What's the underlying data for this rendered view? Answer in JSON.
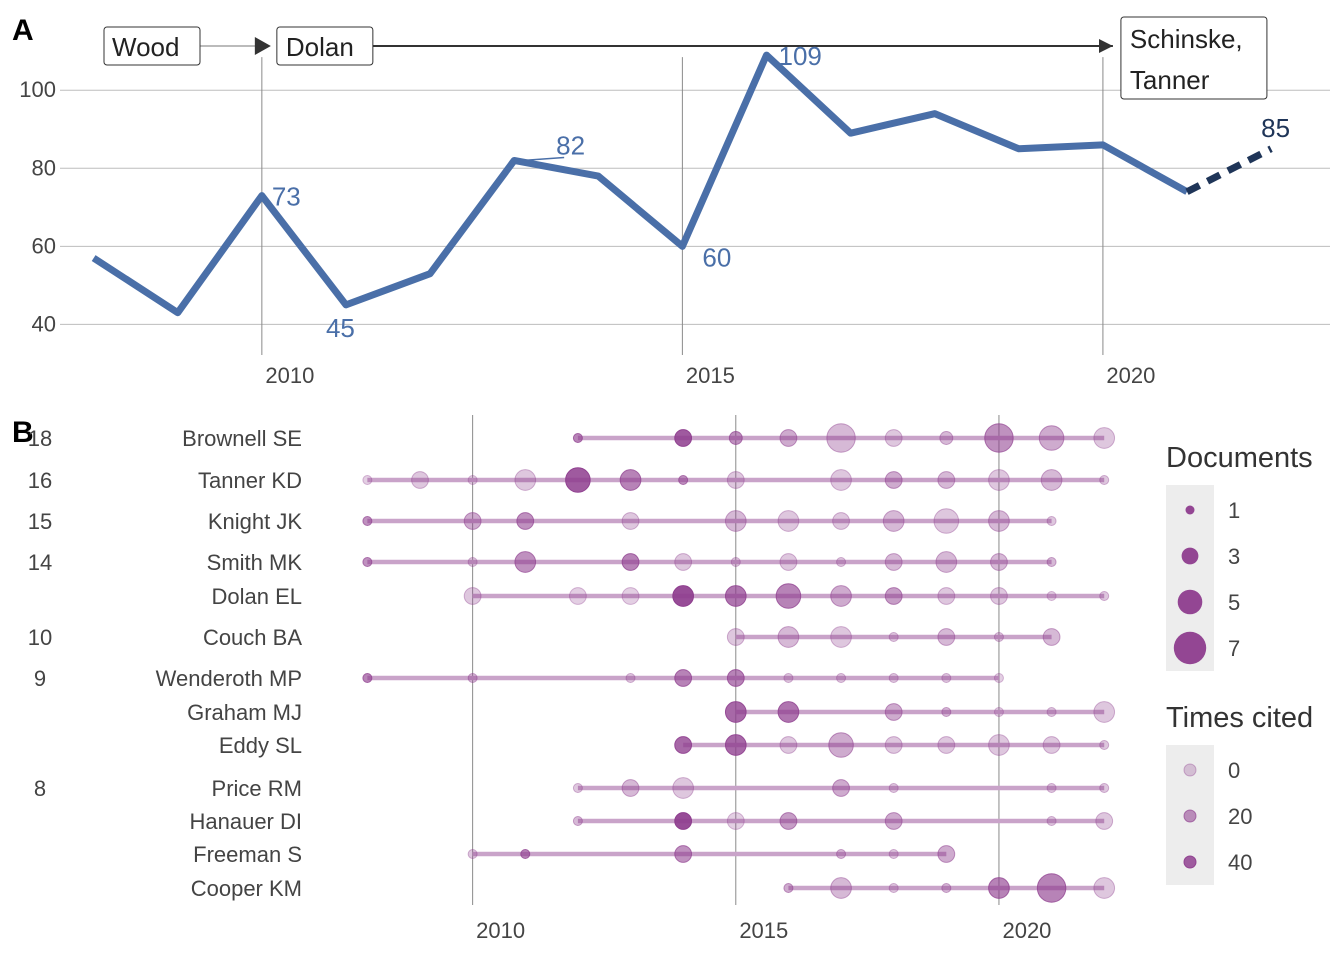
{
  "colors": {
    "line": "#4a6fa8",
    "forecast": "#1f3558",
    "label": "#4a6fa8",
    "forecast_label": "#1f3558",
    "grid": "#bdbdbd",
    "vline": "#8a8a8a",
    "dot": "#8e3d8e",
    "seg": "#c9a3c9",
    "legend_bg": "#ededed",
    "text": "#444444",
    "arrow_gray": "#bbbbbb",
    "arrow_dark": "#333333"
  },
  "chart_data": [
    {
      "type": "line",
      "panel_label": "A",
      "x": [
        2008,
        2009,
        2010,
        2011,
        2012,
        2013,
        2014,
        2015,
        2016,
        2017,
        2018,
        2019,
        2020,
        2021
      ],
      "y": [
        57,
        43,
        73,
        45,
        53,
        82,
        78,
        60,
        109,
        89,
        94,
        85,
        86,
        74
      ],
      "forecast": {
        "x": [
          2021,
          2022
        ],
        "y": [
          74,
          85
        ]
      },
      "data_labels": [
        {
          "x": 2010,
          "y": 73,
          "text": "73"
        },
        {
          "x": 2011,
          "y": 45,
          "text": "45"
        },
        {
          "x": 2013,
          "y": 82,
          "text": "82"
        },
        {
          "x": 2015,
          "y": 60,
          "text": "60"
        },
        {
          "x": 2016,
          "y": 109,
          "text": "109"
        },
        {
          "x": 2022,
          "y": 85,
          "text": "85"
        }
      ],
      "y_ticks": [
        40,
        60,
        80,
        100
      ],
      "x_ticks": [
        2010,
        2015,
        2020
      ],
      "x_tick_labels": [
        "2010",
        "2015",
        "2020"
      ],
      "xlim": [
        2007.6,
        2022.7
      ],
      "ylim": [
        36,
        118
      ],
      "timeline": [
        {
          "text": "Wood",
          "x": 2007.6
        },
        {
          "text": "Dolan",
          "x": 2010
        },
        {
          "text": "Schinske,",
          "text2": "Tanner",
          "x": 2020
        }
      ],
      "grid": "horizontal"
    },
    {
      "type": "scatter",
      "panel_label": "B",
      "xlim": [
        2007.1,
        2022.3
      ],
      "x_ticks": [
        2010,
        2015,
        2020
      ],
      "x_tick_labels": [
        "2010",
        "2015",
        "2020"
      ],
      "authors": [
        {
          "name": "Brownell SE",
          "count": "18",
          "points": [
            [
              2012,
              1,
              30
            ],
            [
              2014,
              3,
              45
            ],
            [
              2015,
              2,
              25
            ],
            [
              2016,
              3,
              15
            ],
            [
              2017,
              6,
              10
            ],
            [
              2018,
              3,
              5
            ],
            [
              2019,
              2,
              10
            ],
            [
              2020,
              6,
              25
            ],
            [
              2021,
              5,
              15
            ],
            [
              2022,
              4,
              5
            ]
          ]
        },
        {
          "name": "Tanner KD",
          "count": "16",
          "points": [
            [
              2008,
              1,
              2
            ],
            [
              2009,
              3,
              5
            ],
            [
              2010,
              1,
              2
            ],
            [
              2011,
              4,
              5
            ],
            [
              2012,
              5,
              45
            ],
            [
              2013,
              4,
              30
            ],
            [
              2014,
              1,
              25
            ],
            [
              2015,
              3,
              5
            ],
            [
              2017,
              4,
              5
            ],
            [
              2018,
              3,
              15
            ],
            [
              2019,
              3,
              10
            ],
            [
              2020,
              4,
              5
            ],
            [
              2021,
              4,
              10
            ],
            [
              2022,
              1,
              5
            ]
          ]
        },
        {
          "name": "Knight JK",
          "count": "15",
          "points": [
            [
              2008,
              1,
              25
            ],
            [
              2010,
              3,
              15
            ],
            [
              2011,
              3,
              25
            ],
            [
              2013,
              3,
              5
            ],
            [
              2015,
              4,
              10
            ],
            [
              2016,
              4,
              5
            ],
            [
              2017,
              3,
              5
            ],
            [
              2018,
              4,
              10
            ],
            [
              2019,
              5,
              5
            ],
            [
              2020,
              4,
              10
            ],
            [
              2021,
              1,
              5
            ]
          ]
        },
        {
          "name": "Smith MK",
          "count": "14",
          "points": [
            [
              2008,
              1,
              25
            ],
            [
              2010,
              1,
              5
            ],
            [
              2011,
              4,
              25
            ],
            [
              2013,
              3,
              30
            ],
            [
              2014,
              3,
              5
            ],
            [
              2015,
              1,
              5
            ],
            [
              2016,
              3,
              5
            ],
            [
              2017,
              1,
              5
            ],
            [
              2018,
              3,
              10
            ],
            [
              2019,
              4,
              10
            ],
            [
              2020,
              3,
              10
            ],
            [
              2021,
              1,
              10
            ]
          ]
        },
        {
          "name": "Dolan EL",
          "count": "",
          "points": [
            [
              2010,
              3,
              5
            ],
            [
              2012,
              3,
              2
            ],
            [
              2013,
              3,
              2
            ],
            [
              2014,
              4,
              50
            ],
            [
              2015,
              4,
              35
            ],
            [
              2016,
              5,
              30
            ],
            [
              2017,
              4,
              15
            ],
            [
              2018,
              3,
              20
            ],
            [
              2019,
              3,
              5
            ],
            [
              2020,
              3,
              5
            ],
            [
              2021,
              1,
              2
            ],
            [
              2022,
              1,
              5
            ]
          ]
        },
        {
          "name": "Couch BA",
          "count": "10",
          "points": [
            [
              2015,
              3,
              5
            ],
            [
              2016,
              4,
              10
            ],
            [
              2017,
              4,
              5
            ],
            [
              2018,
              1,
              5
            ],
            [
              2019,
              3,
              10
            ],
            [
              2020,
              1,
              5
            ],
            [
              2021,
              3,
              10
            ]
          ]
        },
        {
          "name": "Wenderoth MP",
          "count": "9",
          "points": [
            [
              2008,
              1,
              30
            ],
            [
              2010,
              1,
              10
            ],
            [
              2013,
              1,
              5
            ],
            [
              2014,
              3,
              30
            ],
            [
              2015,
              3,
              30
            ],
            [
              2016,
              1,
              5
            ],
            [
              2017,
              1,
              5
            ],
            [
              2018,
              1,
              5
            ],
            [
              2019,
              1,
              5
            ],
            [
              2020,
              1,
              2
            ]
          ]
        },
        {
          "name": "Graham MJ",
          "count": "",
          "points": [
            [
              2015,
              4,
              40
            ],
            [
              2016,
              4,
              35
            ],
            [
              2018,
              3,
              15
            ],
            [
              2019,
              1,
              10
            ],
            [
              2020,
              1,
              2
            ],
            [
              2021,
              1,
              5
            ],
            [
              2022,
              4,
              5
            ]
          ]
        },
        {
          "name": "Eddy SL",
          "count": "",
          "points": [
            [
              2014,
              3,
              40
            ],
            [
              2015,
              4,
              40
            ],
            [
              2016,
              3,
              5
            ],
            [
              2017,
              5,
              15
            ],
            [
              2018,
              3,
              5
            ],
            [
              2019,
              3,
              5
            ],
            [
              2020,
              4,
              5
            ],
            [
              2021,
              3,
              5
            ],
            [
              2022,
              1,
              5
            ]
          ]
        },
        {
          "name": "Price RM",
          "count": "8",
          "points": [
            [
              2012,
              1,
              5
            ],
            [
              2013,
              3,
              10
            ],
            [
              2014,
              4,
              5
            ],
            [
              2017,
              3,
              15
            ],
            [
              2018,
              1,
              5
            ],
            [
              2021,
              1,
              5
            ],
            [
              2022,
              1,
              5
            ]
          ]
        },
        {
          "name": "Hanauer DI",
          "count": "",
          "points": [
            [
              2012,
              1,
              10
            ],
            [
              2014,
              3,
              50
            ],
            [
              2015,
              3,
              2
            ],
            [
              2016,
              3,
              20
            ],
            [
              2018,
              3,
              15
            ],
            [
              2021,
              1,
              5
            ],
            [
              2022,
              3,
              5
            ]
          ]
        },
        {
          "name": "Freeman S",
          "count": "",
          "points": [
            [
              2010,
              1,
              5
            ],
            [
              2011,
              1,
              30
            ],
            [
              2014,
              3,
              25
            ],
            [
              2017,
              1,
              10
            ],
            [
              2018,
              1,
              5
            ],
            [
              2019,
              3,
              15
            ]
          ]
        },
        {
          "name": "Cooper KM",
          "count": "",
          "points": [
            [
              2016,
              1,
              15
            ],
            [
              2017,
              4,
              10
            ],
            [
              2018,
              1,
              5
            ],
            [
              2019,
              1,
              10
            ],
            [
              2020,
              4,
              30
            ],
            [
              2021,
              6,
              30
            ],
            [
              2022,
              4,
              5
            ]
          ]
        }
      ],
      "legend": {
        "documents_title": "Documents",
        "documents": [
          1,
          3,
          5,
          7
        ],
        "documents_labels": [
          "1",
          "3",
          "5",
          "7"
        ],
        "cited_title": "Times cited",
        "cited": [
          0,
          20,
          40
        ],
        "cited_labels": [
          "0",
          "20",
          "40"
        ]
      }
    }
  ]
}
